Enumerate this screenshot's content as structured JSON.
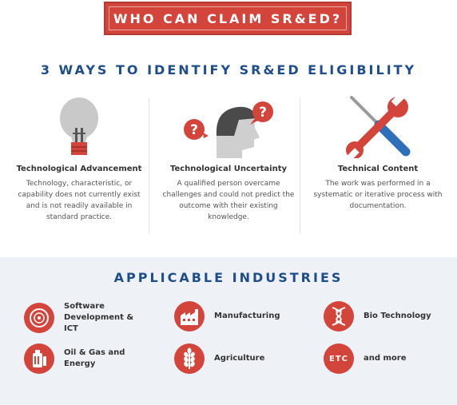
{
  "banner": {
    "title": "WHO CAN CLAIM SR&ED?"
  },
  "eligibility": {
    "heading": "3 WAYS TO IDENTIFY SR&ED ELIGIBILITY",
    "items": [
      {
        "icon": "lightbulb-icon",
        "title": "Technological Advancement",
        "description": "Technology, characteristic, or capability does not currently exist and is not readily available in standard practice."
      },
      {
        "icon": "person-question-icon",
        "title": "Technological Uncertainty",
        "description": "A qualified person overcame challenges and could not predict the outcome with their existing knowledge."
      },
      {
        "icon": "wrench-screwdriver-icon",
        "title": "Technical Content",
        "description": "The work was performed in a systematic or iterative process with documentation."
      }
    ]
  },
  "industries": {
    "heading": "APPLICABLE INDUSTRIES",
    "items": [
      {
        "icon": "disc-icon",
        "label": "Software Development & ICT"
      },
      {
        "icon": "factory-icon",
        "label": "Manufacturing"
      },
      {
        "icon": "dna-icon",
        "label": "Bio Technology"
      },
      {
        "icon": "oil-barrel-icon",
        "label": "Oil & Gas and Energy"
      },
      {
        "icon": "wheat-icon",
        "label": "Agriculture"
      },
      {
        "icon": "etc-icon",
        "icon_text": "ETC",
        "label": "and more"
      }
    ]
  },
  "colors": {
    "accent": "#d3443b",
    "heading": "#1e4d8c",
    "text": "#555555"
  }
}
